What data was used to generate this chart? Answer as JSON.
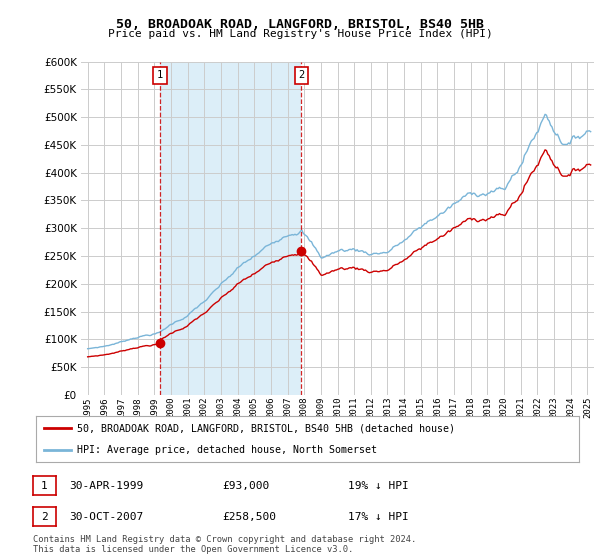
{
  "title": "50, BROADOAK ROAD, LANGFORD, BRISTOL, BS40 5HB",
  "subtitle": "Price paid vs. HM Land Registry's House Price Index (HPI)",
  "legend_line1": "50, BROADOAK ROAD, LANGFORD, BRISTOL, BS40 5HB (detached house)",
  "legend_line2": "HPI: Average price, detached house, North Somerset",
  "marker1_date": "30-APR-1999",
  "marker1_price": "£93,000",
  "marker1_hpi": "19% ↓ HPI",
  "marker1_year": 1999.33,
  "marker1_value": 93000,
  "marker2_date": "30-OCT-2007",
  "marker2_price": "£258,500",
  "marker2_hpi": "17% ↓ HPI",
  "marker2_year": 2007.83,
  "marker2_value": 258500,
  "footer": "Contains HM Land Registry data © Crown copyright and database right 2024.\nThis data is licensed under the Open Government Licence v3.0.",
  "hpi_color": "#7ab5d8",
  "price_color": "#cc0000",
  "shade_color": "#dceef8",
  "background_color": "#ffffff",
  "grid_color": "#cccccc",
  "ylim": [
    0,
    600000
  ],
  "yticks": [
    0,
    50000,
    100000,
    150000,
    200000,
    250000,
    300000,
    350000,
    400000,
    450000,
    500000,
    550000,
    600000
  ],
  "xlim_start": 1994.6,
  "xlim_end": 2025.4
}
